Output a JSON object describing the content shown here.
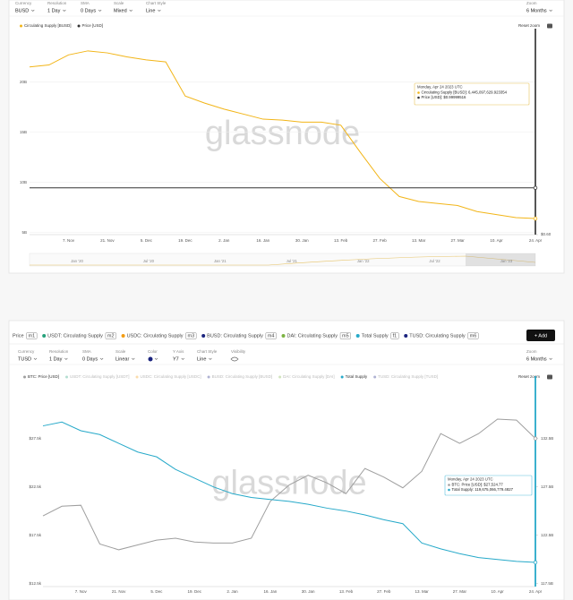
{
  "chart_data": [
    {
      "type": "line",
      "controls": [
        {
          "label": "Currency",
          "value": "BUSD"
        },
        {
          "label": "Resolution",
          "value": "1 Day"
        },
        {
          "label": "SMA",
          "value": "0 Days"
        },
        {
          "label": "Scale",
          "value": "Mixed"
        },
        {
          "label": "Chart Style",
          "value": "Line"
        }
      ],
      "zoom": {
        "label": "Zoom",
        "value": "6 Months"
      },
      "reset_zoom": "Reset zoom",
      "watermark": "glassnode",
      "categories": [
        null,
        null,
        "7. Nov",
        null,
        "21. Nov",
        null,
        "5. Dec",
        null,
        "19. Dec",
        null,
        "2. Jan",
        null,
        "16. Jan",
        null,
        "30. Jan",
        null,
        "13. Feb",
        null,
        "27. Feb",
        null,
        "13. Mar",
        null,
        "27. Mar",
        null,
        "10. Apr",
        null,
        "24. Apr"
      ],
      "series": [
        {
          "name": "Circulating Supply [BUSD]",
          "color": "#f2b518",
          "values": [
            21.5,
            21.7,
            22.7,
            23.1,
            22.9,
            22.5,
            22.2,
            22.0,
            18.6,
            17.9,
            17.3,
            16.8,
            16.3,
            16.2,
            16.0,
            16.0,
            15.7,
            13.0,
            10.4,
            8.6,
            8.1,
            7.9,
            7.7,
            7.1,
            6.8,
            6.5,
            6.4
          ]
        },
        {
          "name": "Price [USD]",
          "color": "#333333",
          "axis": "y2",
          "values": [
            1,
            1,
            1,
            1,
            1,
            1,
            1,
            1,
            1,
            1,
            1,
            1,
            1,
            1,
            1,
            1,
            1,
            1,
            1,
            1,
            1,
            1,
            1,
            1,
            1,
            1,
            1
          ]
        }
      ],
      "ylim": [
        4.8,
        24.6
      ],
      "yticks": [
        {
          "value": 5,
          "label": "5B"
        },
        {
          "value": 10,
          "label": "10B"
        },
        {
          "value": 15,
          "label": "15B"
        },
        {
          "value": 20,
          "label": "20B"
        }
      ],
      "y2lim": [
        0.6,
        2.3
      ],
      "y2ticks": [
        {
          "value": 0.6,
          "label": "$0.60"
        }
      ],
      "grid": true,
      "tooltip": {
        "title": "Monday, Apr 24 2023 UTC",
        "lines": [
          {
            "text": "Circulating Supply [BUSD]: 6,445,097,629.923354",
            "color": "#f2b518"
          },
          {
            "text": "Price [USD]: $0.99999516",
            "color": "#333333"
          }
        ]
      },
      "navigator_labels": [
        "Jan '20",
        "Jul '20",
        "Jan '21",
        "Jul '21",
        "Jan '22",
        "Jul '22",
        "Jan '23"
      ]
    },
    {
      "type": "line",
      "metrics_bar": {
        "label": "Price",
        "badge": "m1",
        "items": [
          {
            "name": "USDT: Circulating Supply",
            "badge": "m2",
            "color": "#26a17b"
          },
          {
            "name": "USDC: Circulating Supply",
            "badge": "m3",
            "color": "#f39c12"
          },
          {
            "name": "BUSD: Circulating Supply",
            "badge": "m4",
            "color": "#1a237e"
          },
          {
            "name": "DAI: Circulating Supply",
            "badge": "m5",
            "color": "#7cb342"
          },
          {
            "name": "Total Supply",
            "badge": "f1",
            "color": "#26a9c9"
          },
          {
            "name": "TUSD: Circulating Supply",
            "badge": "m6",
            "color": "#1a237e"
          }
        ],
        "add": "+ Add"
      },
      "controls": [
        {
          "label": "Currency",
          "value": "TUSD"
        },
        {
          "label": "Resolution",
          "value": "1 Day"
        },
        {
          "label": "SMA",
          "value": "0 Days"
        },
        {
          "label": "Scale",
          "value": "Linear"
        },
        {
          "label": "Color",
          "swatch": "#1a237e"
        },
        {
          "label": "Y Axis",
          "value": "Y7"
        },
        {
          "label": "Chart Style",
          "value": "Line"
        },
        {
          "label": "Visibility"
        }
      ],
      "zoom": {
        "label": "Zoom",
        "value": "6 Months"
      },
      "reset_zoom": "Reset zoom",
      "watermark": "glassnode",
      "categories": [
        null,
        null,
        "7. Nov",
        null,
        "21. Nov",
        null,
        "5. Dec",
        null,
        "19. Dec",
        null,
        "2. Jan",
        null,
        "16. Jan",
        null,
        "30. Jan",
        null,
        "13. Feb",
        null,
        "27. Feb",
        null,
        "13. Mar",
        null,
        "27. Mar",
        null,
        "10. Apr",
        null,
        "24. Apr"
      ],
      "series": [
        {
          "name": "BTC: Price [USD]",
          "color": "#9e9e9e",
          "values": [
            19.5,
            20.5,
            20.6,
            16.6,
            16.0,
            16.5,
            17.0,
            17.2,
            16.8,
            16.7,
            16.7,
            17.2,
            21.0,
            22.7,
            23.7,
            22.9,
            21.8,
            24.4,
            23.5,
            22.4,
            24.1,
            28.0,
            27.0,
            28.0,
            29.5,
            29.4,
            27.5
          ]
        },
        {
          "name": "USDT: Circulating Supply [USDT]",
          "color": "#26a17b",
          "visible": false
        },
        {
          "name": "USDC: Circulating Supply [USDC]",
          "color": "#f39c12",
          "visible": false
        },
        {
          "name": "BUSD: Circulating Supply [BUSD]",
          "color": "#1a237e",
          "visible": false
        },
        {
          "name": "DAI: Circulating Supply [DAI]",
          "color": "#7cb342",
          "visible": false
        },
        {
          "name": "Total Supply",
          "color": "#26a9c9",
          "axis": "y2",
          "values": [
            133.8,
            134.2,
            133.3,
            132.9,
            132.0,
            131.1,
            130.6,
            129.3,
            128.4,
            127.5,
            126.8,
            126.4,
            126.2,
            126.0,
            125.7,
            125.3,
            125.0,
            124.6,
            124.1,
            123.7,
            121.7,
            121.1,
            120.6,
            120.2,
            120.0,
            119.8,
            119.7
          ]
        },
        {
          "name": "TUSD: Circulating Supply [TUSD]",
          "color": "#1a237e",
          "visible": false
        }
      ],
      "ylim": [
        12.2,
        33.2
      ],
      "yticks": [
        {
          "value": 12.5,
          "label": "$12.5k"
        },
        {
          "value": 17.5,
          "label": "$17.5k"
        },
        {
          "value": 22.5,
          "label": "$22.5k"
        },
        {
          "value": 27.5,
          "label": "$27.5k"
        }
      ],
      "y2lim": [
        117.2,
        138.2
      ],
      "y2ticks": [
        {
          "value": 117.5,
          "label": "117.5B"
        },
        {
          "value": 122.5,
          "label": "122.5B"
        },
        {
          "value": 127.5,
          "label": "127.5B"
        },
        {
          "value": 132.5,
          "label": "132.5B"
        }
      ],
      "grid": false,
      "tooltip": {
        "title": "Monday, Apr 24 2023 UTC",
        "lines": [
          {
            "text": "BTC: Price [USD]: $27,524.77",
            "color": "#9e9e9e"
          },
          {
            "text": "Total Supply: 119,675,066,779.4827",
            "color": "#26a9c9"
          }
        ]
      }
    }
  ]
}
